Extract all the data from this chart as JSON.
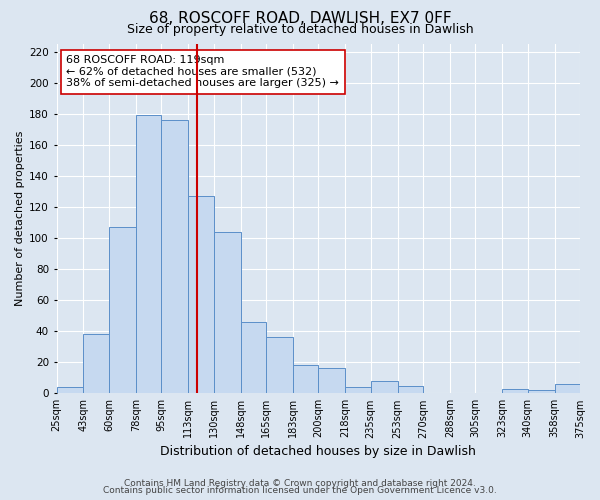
{
  "title": "68, ROSCOFF ROAD, DAWLISH, EX7 0FF",
  "subtitle": "Size of property relative to detached houses in Dawlish",
  "xlabel": "Distribution of detached houses by size in Dawlish",
  "ylabel": "Number of detached properties",
  "bin_edges": [
    25,
    43,
    60,
    78,
    95,
    113,
    130,
    148,
    165,
    183,
    200,
    218,
    235,
    253,
    270,
    288,
    305,
    323,
    340,
    358,
    375
  ],
  "bar_heights": [
    4,
    38,
    107,
    179,
    176,
    127,
    104,
    46,
    36,
    18,
    16,
    4,
    8,
    5,
    0,
    0,
    0,
    3,
    2,
    6
  ],
  "bar_color": "#c6d9f0",
  "bar_edge_color": "#5b8fc9",
  "vline_x": 119,
  "vline_color": "#cc0000",
  "annotation_text": "68 ROSCOFF ROAD: 119sqm\n← 62% of detached houses are smaller (532)\n38% of semi-detached houses are larger (325) →",
  "annotation_box_color": "#ffffff",
  "annotation_box_edge_color": "#cc0000",
  "ylim": [
    0,
    225
  ],
  "yticks": [
    0,
    20,
    40,
    60,
    80,
    100,
    120,
    140,
    160,
    180,
    200,
    220
  ],
  "tick_labels": [
    "25sqm",
    "43sqm",
    "60sqm",
    "78sqm",
    "95sqm",
    "113sqm",
    "130sqm",
    "148sqm",
    "165sqm",
    "183sqm",
    "200sqm",
    "218sqm",
    "235sqm",
    "253sqm",
    "270sqm",
    "288sqm",
    "305sqm",
    "323sqm",
    "340sqm",
    "358sqm",
    "375sqm"
  ],
  "footer_line1": "Contains HM Land Registry data © Crown copyright and database right 2024.",
  "footer_line2": "Contains public sector information licensed under the Open Government Licence v3.0.",
  "fig_background_color": "#dce6f1",
  "plot_background_color": "#dce6f1",
  "grid_color": "#ffffff",
  "title_fontsize": 11,
  "subtitle_fontsize": 9,
  "annotation_fontsize": 8,
  "footer_fontsize": 6.5,
  "ylabel_fontsize": 8,
  "xlabel_fontsize": 9
}
